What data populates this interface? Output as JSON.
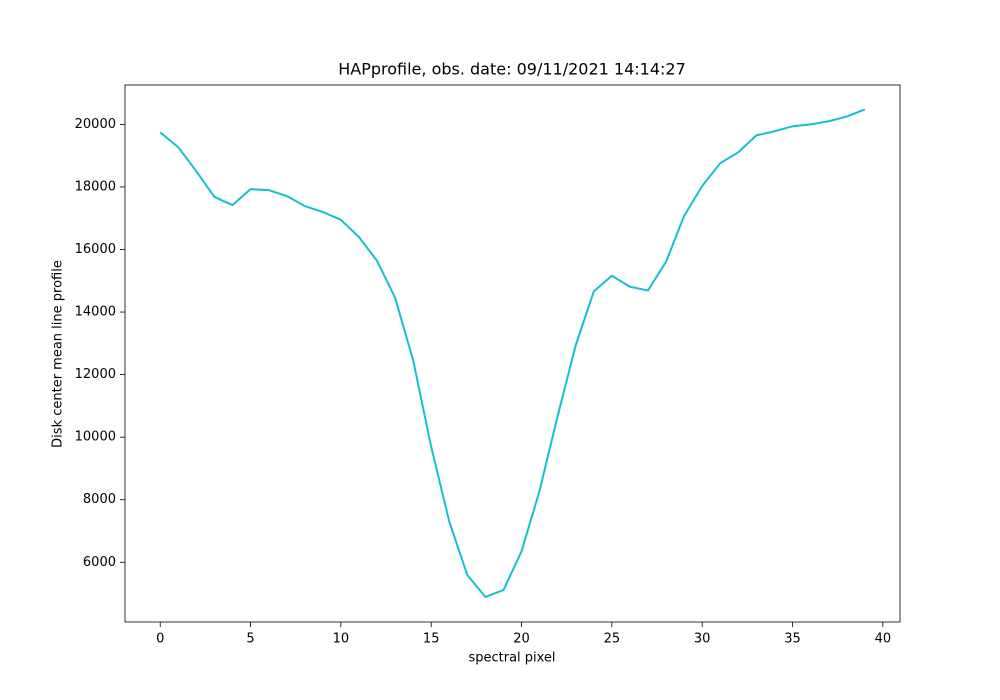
{
  "chart_data": {
    "type": "line",
    "title": "HAPprofile, obs. date: 09/11/2021 14:14:27",
    "x_label": "spectral pixel",
    "y_label": "Disk center mean line profile",
    "x": [
      0,
      1,
      2,
      3,
      4,
      5,
      6,
      7,
      8,
      9,
      10,
      11,
      12,
      13,
      14,
      15,
      16,
      17,
      18,
      19,
      20,
      21,
      22,
      23,
      24,
      25,
      26,
      27,
      28,
      29,
      30,
      31,
      32,
      33,
      34,
      35,
      36,
      37,
      38,
      39
    ],
    "values": [
      19745,
      19270,
      18500,
      17680,
      17420,
      17930,
      17900,
      17710,
      17390,
      17200,
      16950,
      16400,
      15640,
      14460,
      12460,
      9690,
      7300,
      5590,
      4890,
      5110,
      6350,
      8290,
      10680,
      12940,
      14660,
      15160,
      14810,
      14690,
      15610,
      17070,
      18030,
      18760,
      19110,
      19650,
      19780,
      19940,
      20000,
      20100,
      20250,
      20480
    ],
    "color": "#17becf",
    "xlim": [
      -1.95,
      40.95
    ],
    "ylim": [
      4090,
      21260
    ],
    "xticks": [
      0,
      5,
      10,
      15,
      20,
      25,
      30,
      35,
      40
    ],
    "yticks": [
      6000,
      8000,
      10000,
      12000,
      14000,
      16000,
      18000,
      20000
    ],
    "grid": false
  }
}
